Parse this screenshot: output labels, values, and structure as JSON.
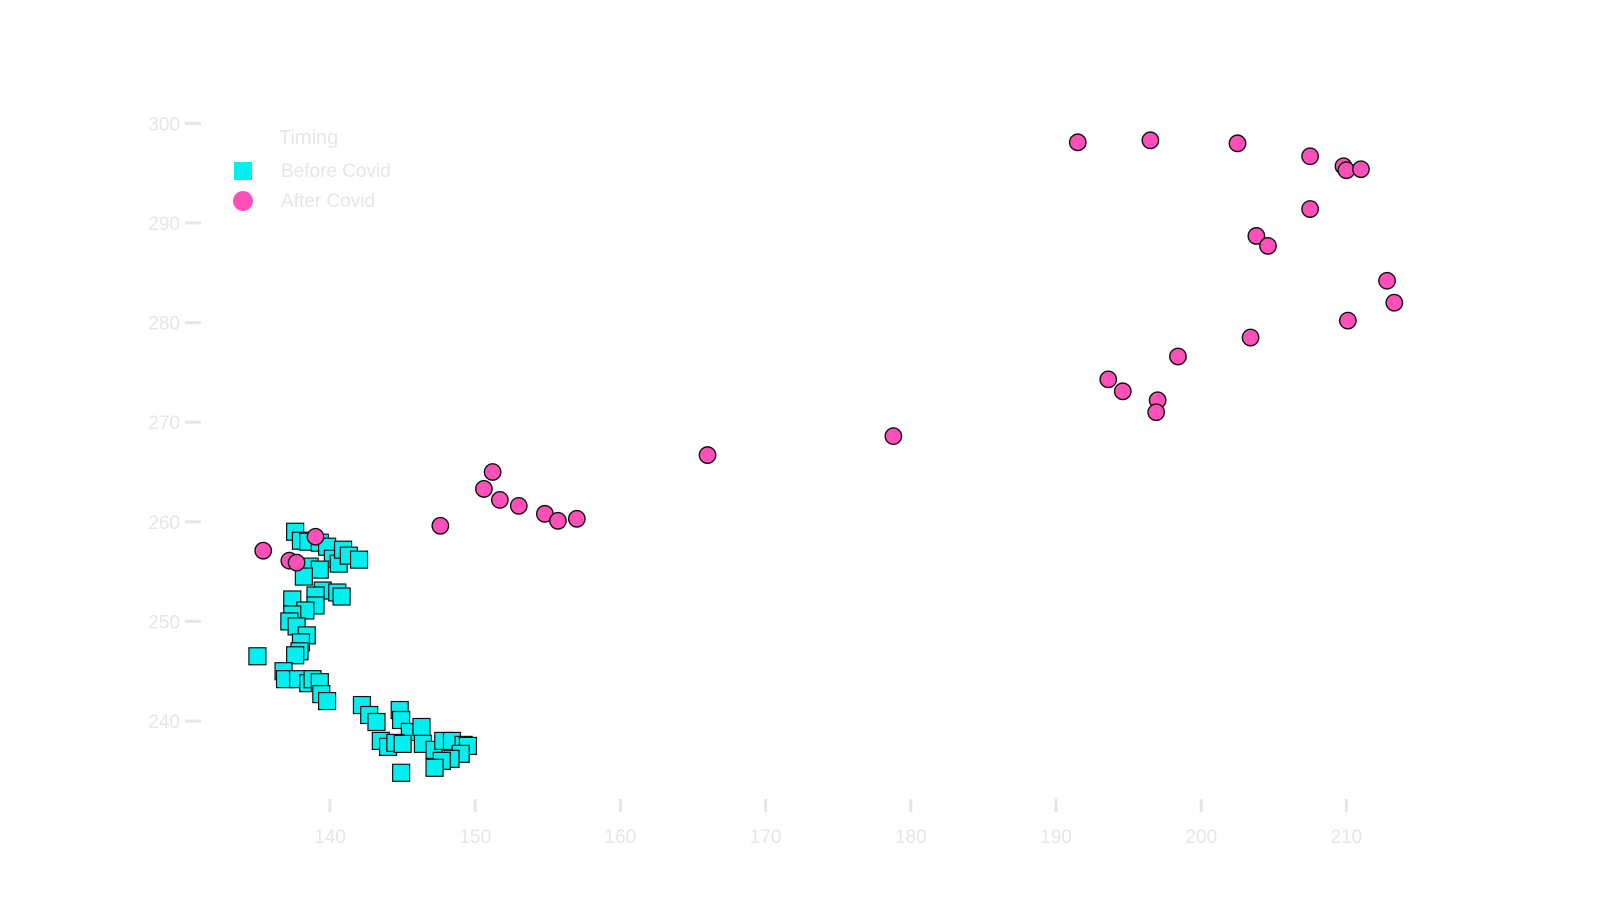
{
  "chart_data": {
    "type": "scatter",
    "title": "",
    "xlabel": "",
    "ylabel": "",
    "xlim": [
      131,
      219
    ],
    "ylim": [
      231,
      302
    ],
    "x_ticks": [
      140,
      150,
      160,
      170,
      180,
      190,
      200,
      210
    ],
    "y_ticks": [
      240,
      250,
      260,
      270,
      280,
      290,
      300
    ],
    "grid": false,
    "legend": {
      "title": "Timing",
      "position": "top-left"
    },
    "series": [
      {
        "name": "Before Covid",
        "marker": "square",
        "color": "#00f0f0",
        "points": [
          [
            137.6,
            259.0
          ],
          [
            138.0,
            258.1
          ],
          [
            138.5,
            258.0
          ],
          [
            139.3,
            257.9
          ],
          [
            139.8,
            257.5
          ],
          [
            140.2,
            256.3
          ],
          [
            140.6,
            255.8
          ],
          [
            140.9,
            257.2
          ],
          [
            141.3,
            256.6
          ],
          [
            142.0,
            256.2
          ],
          [
            138.6,
            255.5
          ],
          [
            139.3,
            255.2
          ],
          [
            138.2,
            254.5
          ],
          [
            139.5,
            253.1
          ],
          [
            140.5,
            252.9
          ],
          [
            139.0,
            252.6
          ],
          [
            140.8,
            252.5
          ],
          [
            137.4,
            252.2
          ],
          [
            139.0,
            251.6
          ],
          [
            138.3,
            251.1
          ],
          [
            137.4,
            250.7
          ],
          [
            137.2,
            250.0
          ],
          [
            137.7,
            249.5
          ],
          [
            138.4,
            248.6
          ],
          [
            138.0,
            247.9
          ],
          [
            137.9,
            247.0
          ],
          [
            137.6,
            246.6
          ],
          [
            135.0,
            246.5
          ],
          [
            136.8,
            245.0
          ],
          [
            136.9,
            244.2
          ],
          [
            137.8,
            244.2
          ],
          [
            138.5,
            243.8
          ],
          [
            138.8,
            244.2
          ],
          [
            139.3,
            243.9
          ],
          [
            139.4,
            242.7
          ],
          [
            139.8,
            242.0
          ],
          [
            142.2,
            241.6
          ],
          [
            142.7,
            240.6
          ],
          [
            143.2,
            239.9
          ],
          [
            144.8,
            241.1
          ],
          [
            144.9,
            240.1
          ],
          [
            145.5,
            238.9
          ],
          [
            146.3,
            239.4
          ],
          [
            143.5,
            238.0
          ],
          [
            144.0,
            237.4
          ],
          [
            144.5,
            237.8
          ],
          [
            145.0,
            237.7
          ],
          [
            146.4,
            237.7
          ],
          [
            147.2,
            237.1
          ],
          [
            147.8,
            238.0
          ],
          [
            148.4,
            238.0
          ],
          [
            149.2,
            237.6
          ],
          [
            149.5,
            237.5
          ],
          [
            149.0,
            236.7
          ],
          [
            148.3,
            236.2
          ],
          [
            147.7,
            236.0
          ],
          [
            147.2,
            235.3
          ],
          [
            144.9,
            234.8
          ]
        ]
      },
      {
        "name": "After Covid",
        "marker": "circle",
        "color": "#ff4fb8",
        "points": [
          [
            135.4,
            257.1
          ],
          [
            137.2,
            256.1
          ],
          [
            137.7,
            255.9
          ],
          [
            139.0,
            258.5
          ],
          [
            147.6,
            259.6
          ],
          [
            150.6,
            263.3
          ],
          [
            151.2,
            265.0
          ],
          [
            151.7,
            262.2
          ],
          [
            153.0,
            261.6
          ],
          [
            154.8,
            260.8
          ],
          [
            155.7,
            260.1
          ],
          [
            157.0,
            260.3
          ],
          [
            166.0,
            266.7
          ],
          [
            178.8,
            268.6
          ],
          [
            191.5,
            298.1
          ],
          [
            196.5,
            298.3
          ],
          [
            202.5,
            298.0
          ],
          [
            207.5,
            296.7
          ],
          [
            209.8,
            295.7
          ],
          [
            210.0,
            295.3
          ],
          [
            211.0,
            295.4
          ],
          [
            207.5,
            291.4
          ],
          [
            203.8,
            288.7
          ],
          [
            204.6,
            287.7
          ],
          [
            212.8,
            284.2
          ],
          [
            213.3,
            282.0
          ],
          [
            210.1,
            280.2
          ],
          [
            203.4,
            278.5
          ],
          [
            198.4,
            276.6
          ],
          [
            193.6,
            274.3
          ],
          [
            194.6,
            273.1
          ],
          [
            197.0,
            272.2
          ],
          [
            196.9,
            271.0
          ]
        ]
      }
    ]
  },
  "colors": {
    "axis_text": "#e6e6e6",
    "axis_line": "#e6e6e6",
    "marker_stroke": "#111111"
  }
}
